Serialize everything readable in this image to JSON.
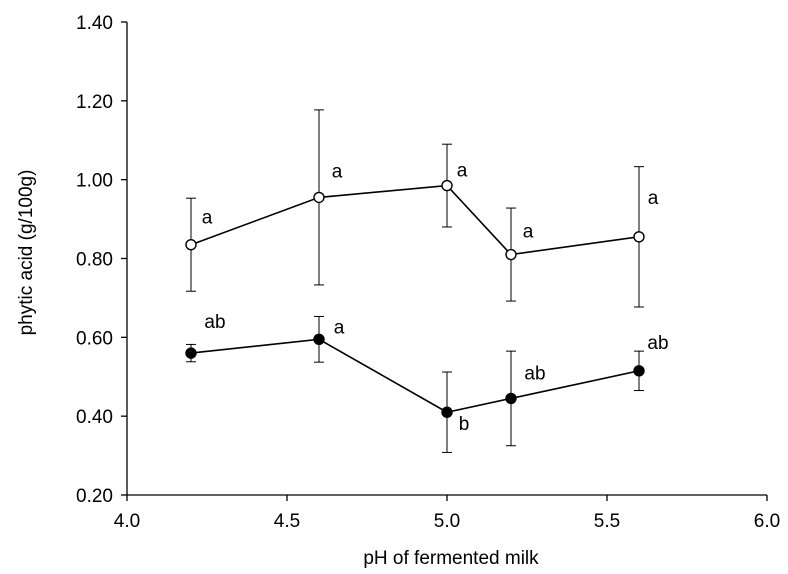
{
  "chart_data": {
    "type": "line",
    "xlabel": "pH of fermented milk",
    "ylabel": "phytic acid (g/100g)",
    "xlim": [
      4.0,
      6.0
    ],
    "ylim": [
      0.2,
      1.4
    ],
    "xticks": [
      "4.0",
      "4.5",
      "5.0",
      "5.5",
      "6.0"
    ],
    "yticks": [
      "0.20",
      "0.40",
      "0.60",
      "0.80",
      "1.00",
      "1.20",
      "1.40"
    ],
    "grid": false,
    "legend": "none",
    "series": [
      {
        "marker": "open-circle",
        "color": "#000000",
        "x": [
          4.2,
          4.6,
          5.0,
          5.2,
          5.6
        ],
        "y": [
          0.835,
          0.955,
          0.985,
          0.81,
          0.855
        ],
        "err": [
          0.118,
          0.222,
          0.105,
          0.118,
          0.178
        ],
        "labels": [
          "a",
          "a",
          "a",
          "a",
          "a"
        ]
      },
      {
        "marker": "filled-circle",
        "color": "#000000",
        "x": [
          4.2,
          4.6,
          5.0,
          5.2,
          5.6
        ],
        "y": [
          0.56,
          0.595,
          0.41,
          0.445,
          0.515
        ],
        "err": [
          0.022,
          0.058,
          0.102,
          0.12,
          0.05
        ],
        "labels": [
          "ab",
          "a",
          "b",
          "ab",
          "ab"
        ]
      }
    ]
  }
}
